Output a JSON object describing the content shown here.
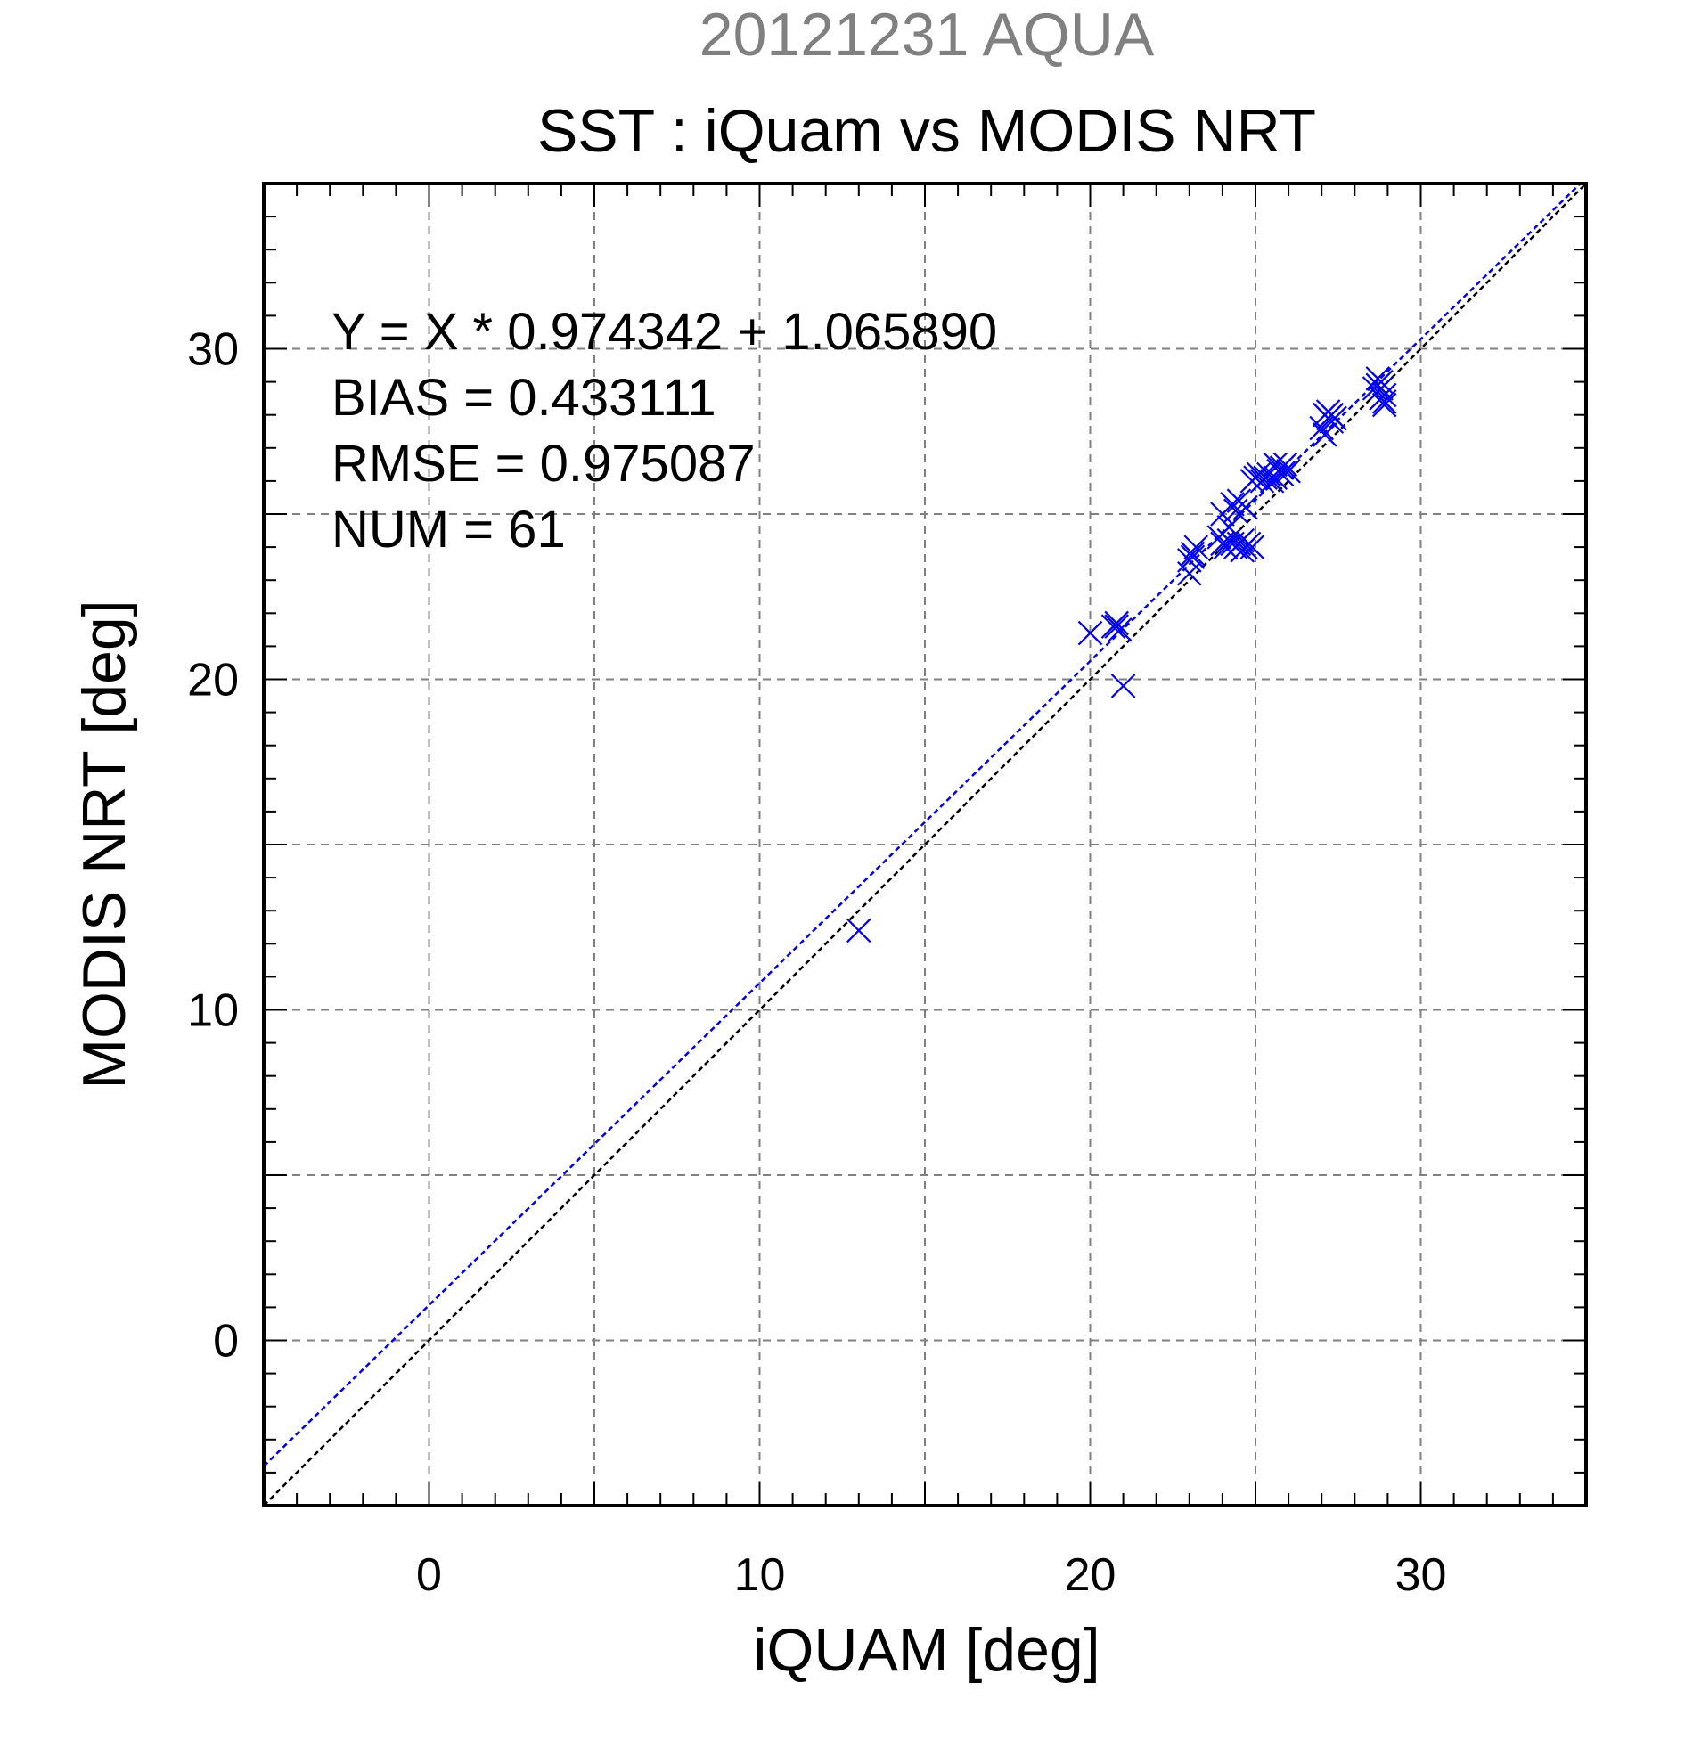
{
  "chart_data": {
    "type": "scatter",
    "title_top": "20121231 AQUA",
    "title": "SST : iQuam vs MODIS NRT",
    "xlabel": "iQUAM [deg]",
    "ylabel": "MODIS NRT [deg]",
    "xlim": [
      -5,
      35
    ],
    "ylim": [
      -5,
      35
    ],
    "xticks": [
      0,
      10,
      20,
      30
    ],
    "yticks": [
      0,
      10,
      20,
      30
    ],
    "grid": true,
    "grid_step": 5,
    "minor_tick_step": 1,
    "stats": [
      "Y = X * 0.974342 + 1.065890",
      "BIAS = 0.433111",
      "RMSE = 0.975087",
      "NUM = 61"
    ],
    "regression": {
      "slope": 0.974342,
      "intercept": 1.06589,
      "color": "#0000ff"
    },
    "identity_line": {
      "color": "#000000"
    },
    "marker": {
      "shape": "x",
      "color": "#0000ff"
    },
    "points": [
      [
        13.0,
        12.4
      ],
      [
        20.0,
        21.4
      ],
      [
        20.7,
        21.6
      ],
      [
        20.8,
        21.7
      ],
      [
        20.9,
        21.5
      ],
      [
        20.8,
        21.6
      ],
      [
        21.0,
        19.8
      ],
      [
        23.0,
        23.6
      ],
      [
        23.1,
        23.8
      ],
      [
        23.0,
        23.2
      ],
      [
        23.2,
        24.0
      ],
      [
        23.1,
        23.7
      ],
      [
        23.9,
        24.3
      ],
      [
        24.0,
        24.1
      ],
      [
        24.1,
        24.0
      ],
      [
        24.2,
        24.2
      ],
      [
        24.3,
        24.1
      ],
      [
        24.4,
        24.0
      ],
      [
        24.5,
        24.1
      ],
      [
        24.6,
        24.2
      ],
      [
        24.7,
        24.0
      ],
      [
        24.8,
        24.1
      ],
      [
        24.9,
        24.0
      ],
      [
        24.6,
        23.9
      ],
      [
        24.0,
        25.0
      ],
      [
        24.3,
        25.3
      ],
      [
        24.4,
        25.1
      ],
      [
        24.5,
        25.4
      ],
      [
        24.7,
        25.2
      ],
      [
        24.2,
        24.6
      ],
      [
        24.9,
        26.0
      ],
      [
        25.0,
        26.1
      ],
      [
        25.1,
        26.2
      ],
      [
        25.2,
        26.0
      ],
      [
        25.3,
        26.1
      ],
      [
        25.4,
        26.2
      ],
      [
        25.5,
        26.0
      ],
      [
        25.6,
        26.1
      ],
      [
        25.7,
        26.3
      ],
      [
        25.8,
        26.4
      ],
      [
        25.9,
        26.5
      ],
      [
        26.0,
        26.3
      ],
      [
        25.6,
        26.5
      ],
      [
        25.8,
        26.2
      ],
      [
        27.1,
        27.4
      ],
      [
        27.2,
        27.9
      ],
      [
        27.3,
        28.0
      ],
      [
        27.2,
        28.1
      ],
      [
        27.3,
        27.8
      ],
      [
        27.1,
        28.0
      ],
      [
        27.4,
        27.9
      ],
      [
        27.0,
        27.6
      ],
      [
        28.7,
        28.9
      ],
      [
        28.8,
        28.8
      ],
      [
        28.9,
        28.3
      ],
      [
        28.8,
        28.5
      ],
      [
        28.7,
        29.1
      ],
      [
        28.9,
        28.6
      ],
      [
        28.9,
        28.4
      ],
      [
        28.6,
        28.8
      ],
      [
        28.8,
        29.0
      ]
    ]
  }
}
